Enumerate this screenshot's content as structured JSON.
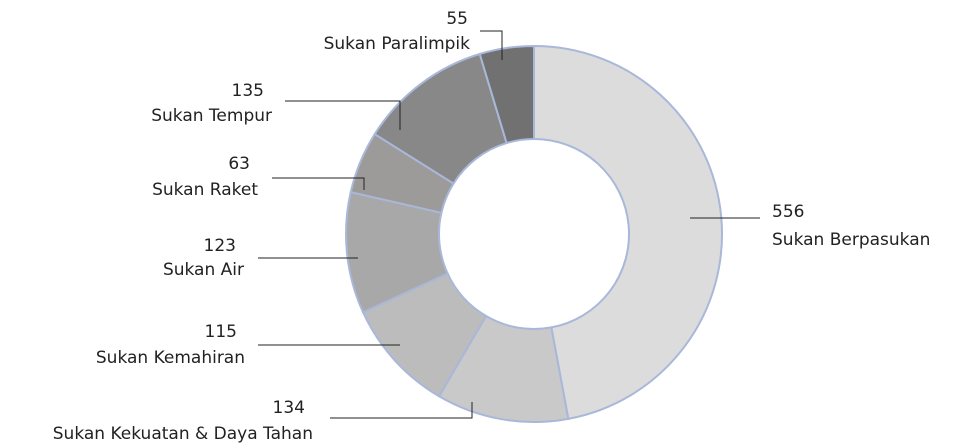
{
  "chart_data": {
    "type": "donut",
    "categories": [
      "Sukan Berpasukan",
      "Sukan Kekuatan & Daya Tahan",
      "Sukan Kemahiran",
      "Sukan Air",
      "Sukan Raket",
      "Sukan Tempur",
      "Sukan Paralimpik"
    ],
    "values": [
      556,
      134,
      115,
      123,
      63,
      135,
      55
    ],
    "colors": [
      "#dcdcdc",
      "#c9c9c9",
      "#bcbcbc",
      "#a8a8a8",
      "#9d9a9a",
      "#888888",
      "#717171"
    ],
    "edge_color": "#a9b8d9"
  }
}
